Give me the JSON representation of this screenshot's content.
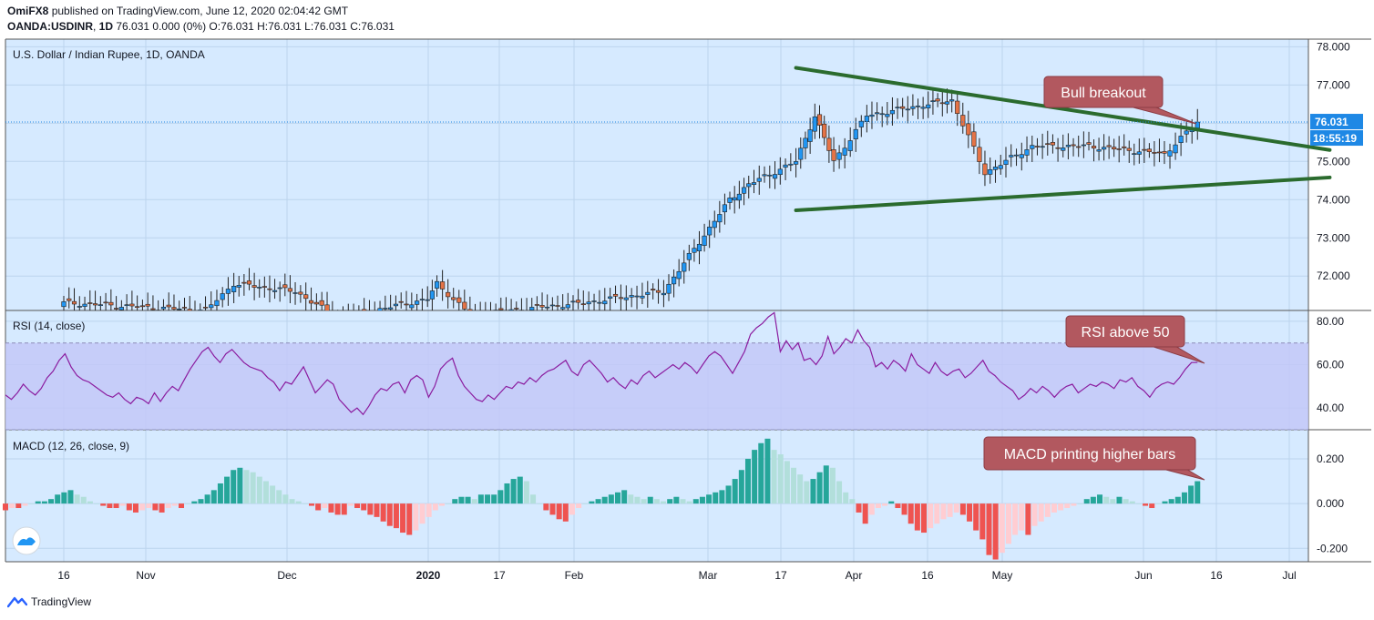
{
  "header": {
    "author": "OmiFX8",
    "published_text": " published on TradingView.com, June 12, 2020 02:04:42 GMT",
    "symbol": "OANDA:USDINR",
    "interval": "1D",
    "quote": "76.031 0.000 (0%) O:76.031 H:76.031 L:76.031 C:76.031"
  },
  "footer": {
    "brand": "TradingView"
  },
  "colors": {
    "background": "#d6eaff",
    "up": "#2196f3",
    "down": "#e57346",
    "trendline": "#2b6b2e",
    "callout_fill": "#b2585f",
    "rsi_line": "#8b1c9f",
    "rsi_band": "#c2c6f7",
    "macd_pos_strong": "#26a69a",
    "macd_pos_weak": "#b2dfdb",
    "macd_neg_strong": "#ef5350",
    "macd_neg_weak": "#ffcdd2"
  },
  "chart_data": [
    {
      "type": "candlestick",
      "title": "U.S. Dollar / Indian Rupee, 1D, OANDA",
      "ylim": [
        71.1,
        78.2
      ],
      "y_ticks": [
        "78.000",
        "77.000",
        "76.000",
        "75.000",
        "74.000",
        "73.000",
        "72.000"
      ],
      "last_price_label": "76.031",
      "countdown_label": "18:55:19",
      "x_tick_labels": [
        "16",
        "Nov",
        "Dec",
        "2020",
        "17",
        "Feb",
        "Mar",
        "17",
        "Apr",
        "16",
        "May",
        "Jun",
        "16",
        "Jul"
      ],
      "annotation": "Bull breakout",
      "trendlines": [
        {
          "name": "upper",
          "from": [
            "2020-03-19",
            77.45
          ],
          "to": [
            "2020-07-10",
            75.3
          ]
        },
        {
          "name": "lower",
          "from": [
            "2020-03-19",
            73.72
          ],
          "to": [
            "2020-07-10",
            74.58
          ]
        }
      ],
      "key_points": [
        {
          "date": "2019-10-16",
          "close": 71.3
        },
        {
          "date": "2019-11-15",
          "close": 71.1
        },
        {
          "date": "2019-11-21",
          "close": 71.8
        },
        {
          "date": "2019-12-04",
          "close": 71.6
        },
        {
          "date": "2019-12-13",
          "close": 70.9
        },
        {
          "date": "2020-01-01",
          "close": 71.4
        },
        {
          "date": "2020-01-03",
          "close": 71.8
        },
        {
          "date": "2020-01-10",
          "close": 71.0
        },
        {
          "date": "2020-02-03",
          "close": 71.3
        },
        {
          "date": "2020-02-20",
          "close": 71.6
        },
        {
          "date": "2020-03-05",
          "close": 74.0
        },
        {
          "date": "2020-03-09",
          "close": 74.4
        },
        {
          "date": "2020-03-19",
          "close": 75.0
        },
        {
          "date": "2020-03-23",
          "close": 76.2
        },
        {
          "date": "2020-03-27",
          "close": 75.0
        },
        {
          "date": "2020-04-03",
          "close": 76.2
        },
        {
          "date": "2020-04-16",
          "close": 76.5
        },
        {
          "date": "2020-04-21",
          "close": 76.6
        },
        {
          "date": "2020-04-28",
          "close": 74.7
        },
        {
          "date": "2020-05-08",
          "close": 75.4
        },
        {
          "date": "2020-05-20",
          "close": 75.4
        },
        {
          "date": "2020-06-05",
          "close": 75.2
        },
        {
          "date": "2020-06-12",
          "close": 76.031
        }
      ]
    },
    {
      "type": "line",
      "title": "RSI (14, close)",
      "ylim": [
        30,
        85
      ],
      "y_ticks": [
        "80.00",
        "60.00",
        "40.00"
      ],
      "bands": [
        30,
        70
      ],
      "annotation": "RSI above 50",
      "values": [
        46,
        44,
        47,
        51,
        48,
        46,
        49,
        54,
        57,
        62,
        65,
        59,
        55,
        53,
        52,
        50,
        48,
        46,
        45,
        47,
        44,
        42,
        45,
        44,
        42,
        47,
        43,
        47,
        50,
        48,
        53,
        58,
        62,
        66,
        68,
        64,
        61,
        65,
        67,
        64,
        61,
        59,
        58,
        57,
        54,
        52,
        48,
        52,
        51,
        55,
        59,
        53,
        47,
        50,
        53,
        51,
        44,
        41,
        38,
        40,
        37,
        41,
        46,
        49,
        48,
        51,
        52,
        47,
        53,
        55,
        53,
        45,
        50,
        58,
        61,
        63,
        55,
        50,
        47,
        44,
        43,
        46,
        44,
        47,
        50,
        49,
        52,
        51,
        54,
        52,
        55,
        57,
        58,
        60,
        62,
        57,
        55,
        60,
        62,
        59,
        56,
        52,
        54,
        51,
        49,
        53,
        51,
        55,
        57,
        54,
        56,
        58,
        60,
        58,
        61,
        59,
        56,
        60,
        64,
        66,
        64,
        60,
        56,
        61,
        66,
        74,
        77,
        79,
        82,
        84,
        66,
        71,
        67,
        70,
        62,
        63,
        60,
        64,
        73,
        65,
        68,
        72,
        70,
        76,
        71,
        68,
        59,
        61,
        58,
        62,
        60,
        57,
        65,
        60,
        58,
        56,
        61,
        57,
        55,
        57,
        58,
        54,
        56,
        59,
        62,
        57,
        55,
        52,
        50,
        48,
        44,
        46,
        49,
        47,
        50,
        48,
        45,
        48,
        50,
        51,
        47,
        49,
        51,
        50,
        52,
        51,
        49,
        53,
        52,
        54,
        50,
        48,
        45,
        49,
        51,
        52,
        51,
        54,
        58,
        61,
        61
      ]
    },
    {
      "type": "bar",
      "title": "MACD (12, 26, close, 9)",
      "ylim": [
        -0.26,
        0.33
      ],
      "y_ticks": [
        "0.200",
        "0.000",
        "-0.200"
      ],
      "annotation": "MACD printing higher bars",
      "values": [
        -0.03,
        -0.02,
        -0.02,
        -0.01,
        0.0,
        0.01,
        0.01,
        0.02,
        0.04,
        0.05,
        0.06,
        0.04,
        0.03,
        0.01,
        0.0,
        -0.01,
        -0.02,
        -0.02,
        -0.01,
        -0.03,
        -0.04,
        -0.03,
        -0.02,
        -0.03,
        -0.04,
        -0.02,
        -0.01,
        -0.02,
        0.0,
        0.01,
        0.02,
        0.04,
        0.06,
        0.09,
        0.12,
        0.15,
        0.16,
        0.15,
        0.14,
        0.12,
        0.1,
        0.08,
        0.06,
        0.04,
        0.02,
        0.01,
        0.0,
        -0.01,
        -0.03,
        -0.02,
        -0.04,
        -0.05,
        -0.05,
        -0.01,
        -0.02,
        -0.03,
        -0.05,
        -0.06,
        -0.08,
        -0.1,
        -0.11,
        -0.13,
        -0.14,
        -0.12,
        -0.09,
        -0.06,
        -0.03,
        -0.01,
        0.0,
        0.02,
        0.03,
        0.03,
        0.02,
        0.04,
        0.04,
        0.04,
        0.06,
        0.09,
        0.11,
        0.12,
        0.1,
        0.04,
        0.0,
        -0.03,
        -0.05,
        -0.07,
        -0.08,
        -0.05,
        -0.02,
        0.0,
        0.01,
        0.02,
        0.03,
        0.04,
        0.05,
        0.06,
        0.04,
        0.03,
        0.02,
        0.03,
        0.02,
        0.01,
        0.02,
        0.03,
        0.02,
        0.01,
        0.02,
        0.03,
        0.04,
        0.05,
        0.06,
        0.08,
        0.11,
        0.15,
        0.2,
        0.24,
        0.27,
        0.29,
        0.24,
        0.22,
        0.19,
        0.16,
        0.13,
        0.1,
        0.11,
        0.14,
        0.17,
        0.16,
        0.1,
        0.05,
        0.02,
        -0.04,
        -0.09,
        -0.05,
        -0.02,
        -0.01,
        0.01,
        -0.02,
        -0.05,
        -0.09,
        -0.12,
        -0.13,
        -0.11,
        -0.09,
        -0.07,
        -0.06,
        -0.04,
        -0.05,
        -0.08,
        -0.12,
        -0.16,
        -0.23,
        -0.25,
        -0.22,
        -0.18,
        -0.14,
        -0.12,
        -0.14,
        -0.1,
        -0.08,
        -0.06,
        -0.04,
        -0.03,
        -0.02,
        -0.01,
        0.0,
        0.02,
        0.03,
        0.04,
        0.03,
        0.02,
        0.03,
        0.02,
        0.01,
        0.0,
        -0.01,
        -0.02,
        0.0,
        0.01,
        0.02,
        0.03,
        0.05,
        0.08,
        0.1
      ]
    }
  ]
}
